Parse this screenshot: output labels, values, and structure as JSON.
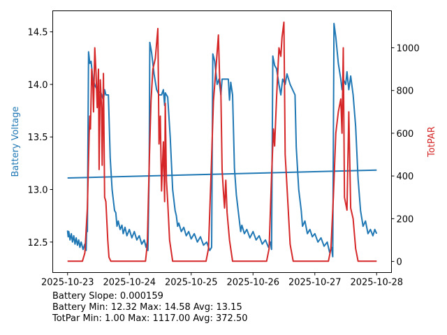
{
  "chart_data": {
    "type": "line",
    "x_unit": "days since 2025-10-23",
    "x_ticks": [
      "2025-10-23",
      "2025-10-24",
      "2025-10-25",
      "2025-10-26",
      "2025-10-27",
      "2025-10-28"
    ],
    "xlim": [
      -0.24,
      5.24
    ],
    "left_axis": {
      "label": "Battery Voltage",
      "color": "#1f77b4",
      "ylim": [
        12.21,
        14.7
      ],
      "ticks": [
        12.5,
        13.0,
        13.5,
        14.0,
        14.5
      ],
      "tick_labels": [
        "12.5",
        "13.0",
        "13.5",
        "14.0",
        "14.5"
      ]
    },
    "right_axis": {
      "label": "TotPAR",
      "color": "#d62728",
      "ylim": [
        -52,
        1173
      ],
      "ticks": [
        0,
        200,
        400,
        600,
        800,
        1000
      ],
      "tick_labels": [
        "0",
        "200",
        "400",
        "600",
        "800",
        "1000"
      ]
    },
    "series": [
      {
        "name": "Battery Voltage",
        "axis": "left",
        "color": "#1f77b4",
        "points": [
          [
            0,
            12.61
          ],
          [
            0.01,
            12.55
          ],
          [
            0.02,
            12.6
          ],
          [
            0.04,
            12.52
          ],
          [
            0.06,
            12.58
          ],
          [
            0.08,
            12.5
          ],
          [
            0.1,
            12.56
          ],
          [
            0.12,
            12.48
          ],
          [
            0.14,
            12.54
          ],
          [
            0.16,
            12.47
          ],
          [
            0.18,
            12.52
          ],
          [
            0.2,
            12.45
          ],
          [
            0.22,
            12.5
          ],
          [
            0.25,
            12.43
          ],
          [
            0.28,
            12.48
          ],
          [
            0.3,
            12.42
          ],
          [
            0.31,
            12.65
          ],
          [
            0.32,
            12.6
          ],
          [
            0.34,
            14.31
          ],
          [
            0.36,
            14.2
          ],
          [
            0.38,
            14.22
          ],
          [
            0.41,
            14.05
          ],
          [
            0.45,
            13.98
          ],
          [
            0.5,
            13.93
          ],
          [
            0.54,
            13.92
          ],
          [
            0.58,
            13.85
          ],
          [
            0.6,
            13.95
          ],
          [
            0.62,
            13.9
          ],
          [
            0.66,
            13.9
          ],
          [
            0.69,
            13.3
          ],
          [
            0.72,
            13.0
          ],
          [
            0.76,
            12.8
          ],
          [
            0.78,
            12.78
          ],
          [
            0.8,
            12.65
          ],
          [
            0.82,
            12.7
          ],
          [
            0.85,
            12.62
          ],
          [
            0.88,
            12.66
          ],
          [
            0.9,
            12.58
          ],
          [
            0.93,
            12.64
          ],
          [
            0.96,
            12.56
          ],
          [
            1.0,
            12.62
          ],
          [
            1.04,
            12.54
          ],
          [
            1.08,
            12.6
          ],
          [
            1.12,
            12.52
          ],
          [
            1.16,
            12.56
          ],
          [
            1.2,
            12.48
          ],
          [
            1.24,
            12.52
          ],
          [
            1.27,
            12.45
          ],
          [
            1.29,
            12.5
          ],
          [
            1.3,
            12.42
          ],
          [
            1.32,
            13.2
          ],
          [
            1.33,
            14.4
          ],
          [
            1.36,
            14.3
          ],
          [
            1.4,
            14.1
          ],
          [
            1.44,
            13.95
          ],
          [
            1.48,
            13.9
          ],
          [
            1.52,
            13.9
          ],
          [
            1.55,
            13.95
          ],
          [
            1.57,
            13.8
          ],
          [
            1.58,
            13.92
          ],
          [
            1.62,
            13.88
          ],
          [
            1.66,
            13.5
          ],
          [
            1.7,
            13.0
          ],
          [
            1.74,
            12.8
          ],
          [
            1.76,
            12.75
          ],
          [
            1.78,
            12.65
          ],
          [
            1.8,
            12.68
          ],
          [
            1.84,
            12.6
          ],
          [
            1.88,
            12.64
          ],
          [
            1.92,
            12.56
          ],
          [
            1.96,
            12.6
          ],
          [
            2.0,
            12.53
          ],
          [
            2.05,
            12.58
          ],
          [
            2.1,
            12.5
          ],
          [
            2.15,
            12.55
          ],
          [
            2.2,
            12.47
          ],
          [
            2.25,
            12.5
          ],
          [
            2.3,
            12.42
          ],
          [
            2.33,
            12.45
          ],
          [
            2.35,
            14.29
          ],
          [
            2.38,
            14.22
          ],
          [
            2.42,
            14.0
          ],
          [
            2.45,
            14.05
          ],
          [
            2.48,
            13.9
          ],
          [
            2.5,
            14.05
          ],
          [
            2.55,
            14.05
          ],
          [
            2.6,
            14.05
          ],
          [
            2.62,
            13.85
          ],
          [
            2.64,
            14.02
          ],
          [
            2.67,
            13.9
          ],
          [
            2.7,
            13.2
          ],
          [
            2.73,
            12.95
          ],
          [
            2.77,
            12.75
          ],
          [
            2.8,
            12.6
          ],
          [
            2.82,
            12.66
          ],
          [
            2.86,
            12.58
          ],
          [
            2.9,
            12.62
          ],
          [
            2.95,
            12.54
          ],
          [
            3.0,
            12.6
          ],
          [
            3.05,
            12.52
          ],
          [
            3.1,
            12.56
          ],
          [
            3.15,
            12.48
          ],
          [
            3.2,
            12.52
          ],
          [
            3.25,
            12.45
          ],
          [
            3.28,
            12.5
          ],
          [
            3.3,
            12.43
          ],
          [
            3.32,
            14.27
          ],
          [
            3.35,
            14.18
          ],
          [
            3.38,
            14.15
          ],
          [
            3.42,
            14.0
          ],
          [
            3.45,
            13.9
          ],
          [
            3.48,
            14.05
          ],
          [
            3.52,
            14.0
          ],
          [
            3.55,
            14.1
          ],
          [
            3.6,
            14.0
          ],
          [
            3.64,
            13.95
          ],
          [
            3.68,
            13.9
          ],
          [
            3.7,
            13.4
          ],
          [
            3.74,
            13.0
          ],
          [
            3.78,
            12.8
          ],
          [
            3.8,
            12.65
          ],
          [
            3.84,
            12.7
          ],
          [
            3.88,
            12.58
          ],
          [
            3.92,
            12.62
          ],
          [
            3.96,
            12.55
          ],
          [
            4.0,
            12.58
          ],
          [
            4.05,
            12.5
          ],
          [
            4.1,
            12.54
          ],
          [
            4.15,
            12.46
          ],
          [
            4.2,
            12.5
          ],
          [
            4.24,
            12.4
          ],
          [
            4.27,
            12.45
          ],
          [
            4.29,
            12.36
          ],
          [
            4.31,
            14.58
          ],
          [
            4.34,
            14.45
          ],
          [
            4.38,
            14.2
          ],
          [
            4.42,
            14.05
          ],
          [
            4.44,
            13.95
          ],
          [
            4.46,
            14.05
          ],
          [
            4.5,
            14.0
          ],
          [
            4.52,
            14.12
          ],
          [
            4.55,
            13.95
          ],
          [
            4.58,
            14.08
          ],
          [
            4.62,
            13.9
          ],
          [
            4.66,
            13.6
          ],
          [
            4.7,
            13.1
          ],
          [
            4.74,
            12.8
          ],
          [
            4.78,
            12.65
          ],
          [
            4.82,
            12.7
          ],
          [
            4.86,
            12.58
          ],
          [
            4.9,
            12.62
          ],
          [
            4.94,
            12.56
          ],
          [
            4.97,
            12.62
          ],
          [
            5.0,
            12.58
          ]
        ]
      },
      {
        "name": "Battery Trend",
        "axis": "left",
        "color": "#1f77b4",
        "slope": 0.000159,
        "points": [
          [
            0,
            13.11
          ],
          [
            5,
            13.185
          ]
        ]
      },
      {
        "name": "TotPAR",
        "axis": "right",
        "color": "#d62728",
        "points": [
          [
            0,
            1
          ],
          [
            0.24,
            1
          ],
          [
            0.28,
            40
          ],
          [
            0.32,
            250
          ],
          [
            0.35,
            600
          ],
          [
            0.36,
            680
          ],
          [
            0.37,
            620
          ],
          [
            0.39,
            900
          ],
          [
            0.41,
            820
          ],
          [
            0.42,
            700
          ],
          [
            0.44,
            1000
          ],
          [
            0.46,
            880
          ],
          [
            0.48,
            720
          ],
          [
            0.5,
            900
          ],
          [
            0.51,
            430
          ],
          [
            0.53,
            850
          ],
          [
            0.55,
            720
          ],
          [
            0.56,
            450
          ],
          [
            0.58,
            880
          ],
          [
            0.6,
            300
          ],
          [
            0.62,
            280
          ],
          [
            0.65,
            100
          ],
          [
            0.67,
            20
          ],
          [
            0.7,
            1
          ],
          [
            1.26,
            1
          ],
          [
            1.29,
            80
          ],
          [
            1.32,
            450
          ],
          [
            1.35,
            750
          ],
          [
            1.38,
            900
          ],
          [
            1.42,
            950
          ],
          [
            1.46,
            1090
          ],
          [
            1.48,
            550
          ],
          [
            1.5,
            680
          ],
          [
            1.52,
            330
          ],
          [
            1.55,
            560
          ],
          [
            1.57,
            280
          ],
          [
            1.58,
            740
          ],
          [
            1.6,
            380
          ],
          [
            1.62,
            280
          ],
          [
            1.65,
            100
          ],
          [
            1.7,
            1
          ],
          [
            2.24,
            1
          ],
          [
            2.28,
            60
          ],
          [
            2.32,
            400
          ],
          [
            2.36,
            750
          ],
          [
            2.4,
            900
          ],
          [
            2.44,
            1060
          ],
          [
            2.46,
            850
          ],
          [
            2.48,
            800
          ],
          [
            2.5,
            430
          ],
          [
            2.52,
            330
          ],
          [
            2.54,
            250
          ],
          [
            2.56,
            380
          ],
          [
            2.58,
            230
          ],
          [
            2.62,
            100
          ],
          [
            2.67,
            1
          ],
          [
            3.22,
            1
          ],
          [
            3.26,
            60
          ],
          [
            3.3,
            400
          ],
          [
            3.33,
            620
          ],
          [
            3.35,
            540
          ],
          [
            3.38,
            760
          ],
          [
            3.42,
            1000
          ],
          [
            3.45,
            960
          ],
          [
            3.47,
            1050
          ],
          [
            3.5,
            1120
          ],
          [
            3.52,
            500
          ],
          [
            3.55,
            350
          ],
          [
            3.6,
            80
          ],
          [
            3.65,
            1
          ],
          [
            4.22,
            1
          ],
          [
            4.26,
            60
          ],
          [
            4.3,
            300
          ],
          [
            4.34,
            600
          ],
          [
            4.38,
            700
          ],
          [
            4.42,
            760
          ],
          [
            4.44,
            600
          ],
          [
            4.46,
            1000
          ],
          [
            4.48,
            300
          ],
          [
            4.52,
            240
          ],
          [
            4.55,
            700
          ],
          [
            4.58,
            250
          ],
          [
            4.62,
            200
          ],
          [
            4.66,
            60
          ],
          [
            4.7,
            1
          ],
          [
            5.0,
            1
          ]
        ]
      }
    ]
  },
  "stats": {
    "line1": "Battery Slope: 0.000159",
    "line2": "Battery Min: 12.32 Max: 14.58 Avg: 13.15",
    "line3": "TotPar Min: 1.00 Max: 1117.00 Avg: 372.50"
  }
}
